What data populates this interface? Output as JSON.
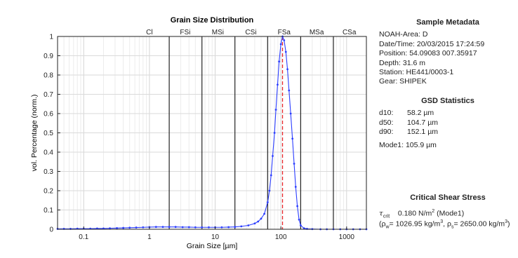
{
  "chart_data": {
    "type": "line",
    "title": "Grain Size Distribution",
    "xlabel": "Grain Size [µm]",
    "ylabel": "vol. Percentage (norm.)",
    "xscale": "log",
    "xlim": [
      0.04,
      2000
    ],
    "ylim": [
      0,
      1
    ],
    "xticks": [
      0.1,
      1,
      10,
      100,
      1000
    ],
    "xtick_labels": [
      "0.1",
      "1",
      "10",
      "100",
      "1000"
    ],
    "yticks": [
      0,
      0.1,
      0.2,
      0.3,
      0.4,
      0.5,
      0.6,
      0.7,
      0.8,
      0.9,
      1
    ],
    "ytick_labels": [
      "0",
      "0.1",
      "0.2",
      "0.3",
      "0.4",
      "0.5",
      "0.6",
      "0.7",
      "0.8",
      "0.9",
      "1"
    ],
    "grid": true,
    "class_boundaries": [
      2,
      6.3,
      20,
      63,
      200,
      630
    ],
    "class_labels": [
      {
        "label": "Cl",
        "x": 1
      },
      {
        "label": "FSi",
        "x": 3.5
      },
      {
        "label": "MSi",
        "x": 11
      },
      {
        "label": "CSi",
        "x": 35
      },
      {
        "label": "FSa",
        "x": 112
      },
      {
        "label": "MSa",
        "x": 350
      },
      {
        "label": "CSa",
        "x": 1100
      }
    ],
    "mode_line_x": 105.9,
    "series": [
      {
        "color": "#2b3dff",
        "x": [
          0.04,
          0.05,
          0.063,
          0.08,
          0.1,
          0.126,
          0.16,
          0.2,
          0.25,
          0.32,
          0.4,
          0.5,
          0.63,
          0.8,
          1,
          1.26,
          1.6,
          2,
          2.5,
          3.2,
          4,
          5,
          6.3,
          8,
          10,
          12.6,
          16,
          20,
          25,
          32,
          40,
          45,
          50,
          56,
          63,
          67,
          71,
          75,
          80,
          84,
          89,
          94,
          100,
          106,
          112,
          119,
          126,
          133,
          141,
          150,
          159,
          168,
          178,
          189,
          200,
          225,
          250,
          300,
          400,
          500,
          630,
          800,
          1000,
          1260,
          1600,
          2000
        ],
        "y": [
          0.002,
          0.002,
          0.002,
          0.003,
          0.003,
          0.003,
          0.004,
          0.004,
          0.005,
          0.006,
          0.007,
          0.008,
          0.009,
          0.01,
          0.011,
          0.012,
          0.012,
          0.012,
          0.012,
          0.011,
          0.011,
          0.01,
          0.01,
          0.01,
          0.01,
          0.01,
          0.011,
          0.012,
          0.015,
          0.02,
          0.03,
          0.04,
          0.055,
          0.08,
          0.14,
          0.2,
          0.28,
          0.38,
          0.5,
          0.62,
          0.75,
          0.87,
          0.96,
          1.0,
          0.98,
          0.92,
          0.83,
          0.72,
          0.6,
          0.47,
          0.34,
          0.22,
          0.12,
          0.05,
          0.02,
          0.005,
          0.002,
          0.001,
          0.0,
          0.0,
          0.0,
          0.0,
          0.0,
          0.0,
          0.0,
          0.0
        ]
      }
    ]
  },
  "metadata": {
    "title": "Sample Metadata",
    "lines": [
      "NOAH-Area: D",
      "Date/Time: 20/03/2015 17:24:59",
      "Position: 54.09083  007.35917",
      "Depth: 31.6 m",
      "Station: HE441/0003-1",
      "Gear: SHIPEK"
    ]
  },
  "stats": {
    "title": "GSD Statistics",
    "rows": [
      {
        "key": "d10:",
        "value": "58.2 µm"
      },
      {
        "key": "d50:",
        "value": "104.7 µm"
      },
      {
        "key": "d90:",
        "value": "152.1 µm"
      }
    ],
    "mode": "Mode1:  105.9 µm"
  },
  "shear": {
    "title": "Critical Shear Stress",
    "tau_symbol": "τ",
    "tau_sub": "crit",
    "tau_value": "0.180 N/m",
    "tau_exp": "2",
    "tau_note": " (Mode1)",
    "rho_w_label": "(ρ",
    "rho_w_sub": "w",
    "rho_w_value": "= 1026.95 kg/m",
    "rho_w_exp": "3",
    "rho_s_label": ",  ρ",
    "rho_s_sub": "s",
    "rho_s_value": "= 2650.00 kg/m",
    "rho_s_exp": "3",
    "rho_close": ")"
  }
}
